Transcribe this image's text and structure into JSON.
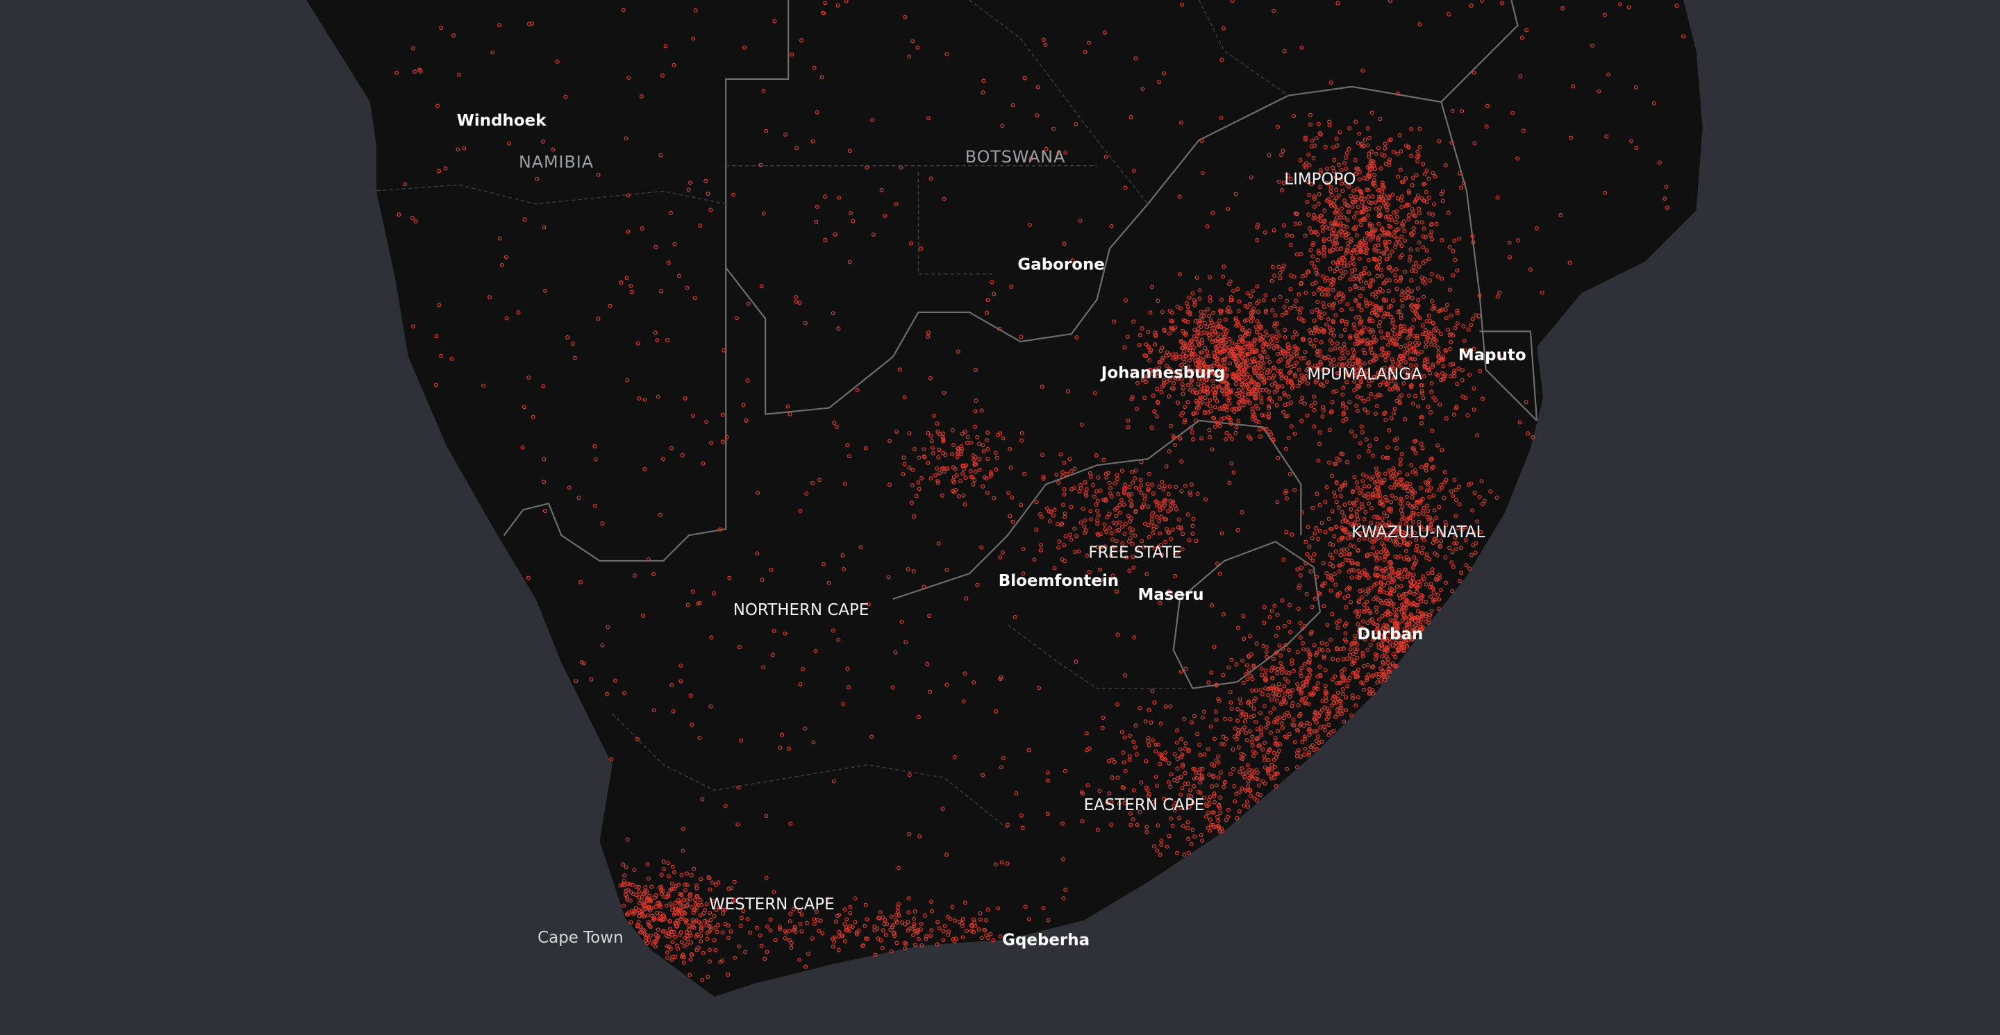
{
  "map": {
    "countries": [
      "NAMIBIA",
      "BOTSWANA"
    ],
    "provinces": [
      "LIMPOPO",
      "MPUMALANGA",
      "KWAZULU-NATAL",
      "FREE STATE",
      "NORTHERN CAPE",
      "EASTERN CAPE",
      "WESTERN CAPE"
    ],
    "cities": [
      "Windhoek",
      "Gaborone",
      "Johannesburg",
      "Maputo",
      "Bloemfontein",
      "Maseru",
      "Durban",
      "Cape Town",
      "Gqeberha"
    ]
  }
}
